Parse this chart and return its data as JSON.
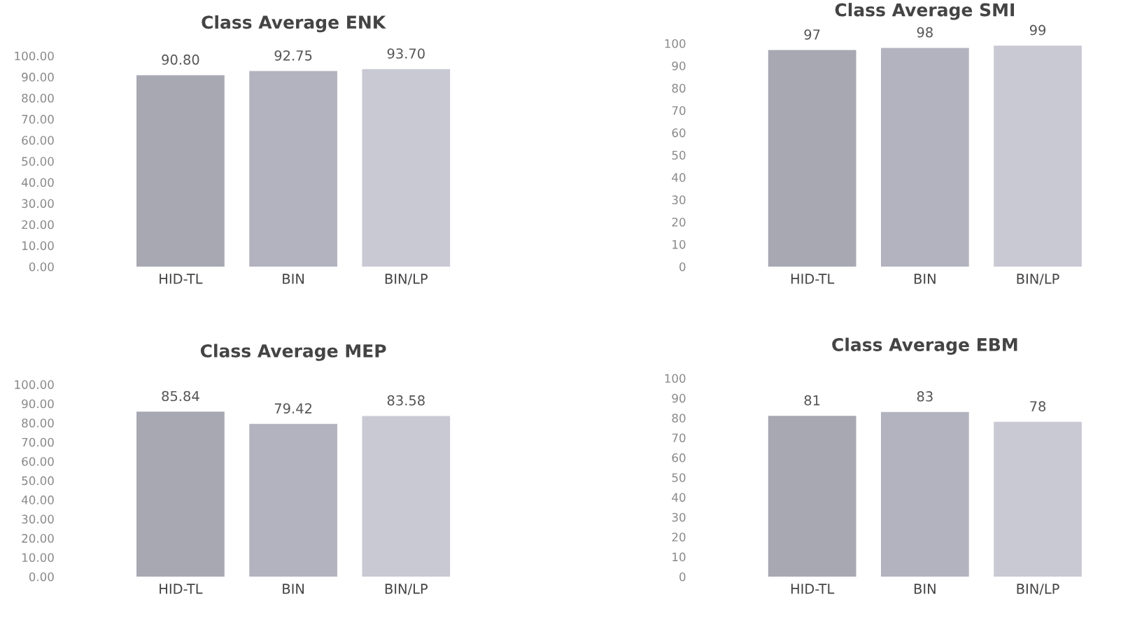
{
  "chart_data": [
    {
      "type": "bar",
      "title": "Class Average ENK",
      "categories": [
        "HID-TL",
        "BIN",
        "BIN/LP"
      ],
      "values": [
        90.8,
        92.75,
        93.7
      ],
      "value_labels": [
        "90.80",
        "92.75",
        "93.70"
      ],
      "colors": [
        "#a8a8b3",
        "#b3b3bf",
        "#c9c9d3"
      ],
      "ylim": [
        0,
        100
      ],
      "yticks": [
        {
          "value": 0,
          "label": "0.00"
        },
        {
          "value": 10,
          "label": "10.00"
        },
        {
          "value": 20,
          "label": "20.00"
        },
        {
          "value": 30,
          "label": "30.00"
        },
        {
          "value": 40,
          "label": "40.00"
        },
        {
          "value": 50,
          "label": "50.00"
        },
        {
          "value": 60,
          "label": "60.00"
        },
        {
          "value": 70,
          "label": "70.00"
        },
        {
          "value": 80,
          "label": "80.00"
        },
        {
          "value": 90,
          "label": "90.00"
        },
        {
          "value": 100,
          "label": "100.00"
        }
      ],
      "data_labels": true
    },
    {
      "type": "bar",
      "title": "Class Average SMI",
      "categories": [
        "HID-TL",
        "BIN",
        "BIN/LP"
      ],
      "values": [
        97,
        98,
        99
      ],
      "colors": [
        "#a8a8b3",
        "#b3b3bf",
        "#c9c9d3"
      ],
      "ylim": [
        0,
        100
      ],
      "yticks": [
        0,
        10,
        20,
        30,
        40,
        50,
        60,
        70,
        80,
        90,
        100
      ],
      "data_labels": true
    },
    {
      "type": "bar",
      "title": "Class Average MEP",
      "categories": [
        "HID-TL",
        "BIN",
        "BIN/LP"
      ],
      "values": [
        85.84,
        79.42,
        83.58
      ],
      "value_labels": [
        "85.84",
        "79.42",
        "83.58"
      ],
      "colors": [
        "#a8a8b3",
        "#b3b3bf",
        "#c9c9d3"
      ],
      "ylim": [
        0,
        100
      ],
      "yticks": [
        {
          "value": 0,
          "label": "0.00"
        },
        {
          "value": 10,
          "label": "10.00"
        },
        {
          "value": 20,
          "label": "20.00"
        },
        {
          "value": 30,
          "label": "30.00"
        },
        {
          "value": 40,
          "label": "40.00"
        },
        {
          "value": 50,
          "label": "50.00"
        },
        {
          "value": 60,
          "label": "60.00"
        },
        {
          "value": 70,
          "label": "70.00"
        },
        {
          "value": 80,
          "label": "80.00"
        },
        {
          "value": 90,
          "label": "90.00"
        },
        {
          "value": 100,
          "label": "100.00"
        }
      ],
      "data_labels": true
    },
    {
      "type": "bar",
      "title": "Class Average EBM",
      "categories": [
        "HID-TL",
        "BIN",
        "BIN/LP"
      ],
      "values": [
        81,
        83,
        78
      ],
      "colors": [
        "#a8a8b3",
        "#b3b3bf",
        "#c9c9d3"
      ],
      "ylim": [
        0,
        100
      ],
      "yticks": [
        0,
        10,
        20,
        30,
        40,
        50,
        60,
        70,
        80,
        90,
        100
      ],
      "data_labels": true
    }
  ]
}
